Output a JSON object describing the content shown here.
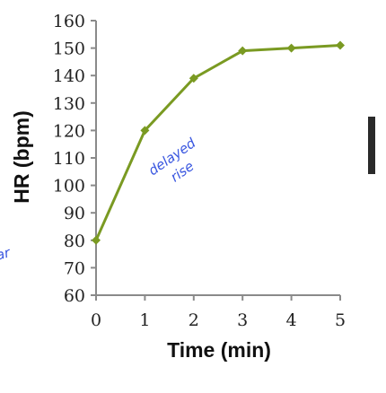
{
  "chart_data": {
    "type": "line",
    "xlabel": "Time (min)",
    "ylabel": "HR (bpm)",
    "x": [
      0,
      1,
      2,
      3,
      4,
      5
    ],
    "series": [
      {
        "values": [
          80,
          120,
          139,
          149,
          150,
          151
        ]
      }
    ],
    "xlim": [
      0,
      5
    ],
    "ylim": [
      60,
      160
    ],
    "yticks": [
      60,
      70,
      80,
      90,
      100,
      110,
      120,
      130,
      140,
      150,
      160
    ],
    "xticks": [
      0,
      1,
      2,
      3,
      4,
      5
    ],
    "grid": false,
    "legend": "none",
    "line_color": "#7a9a22",
    "marker": "diamond",
    "annotations": {
      "note_line1": "delayed",
      "note_line2": "rise",
      "left_fragment": "ar"
    },
    "colors": {
      "axis": "#8a8a8a",
      "annotation": "#3a57e0",
      "right_bar": "#2a2a2a"
    }
  }
}
